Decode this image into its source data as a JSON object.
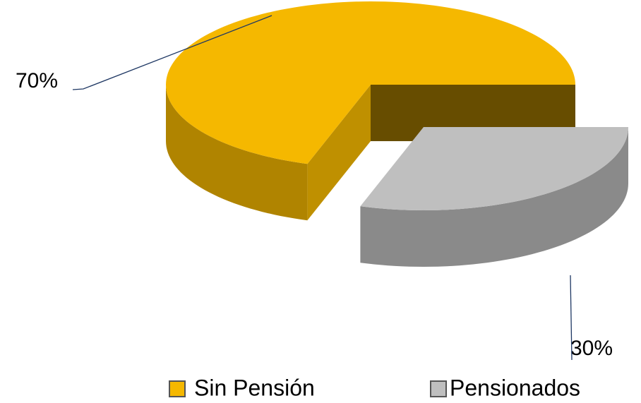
{
  "chart_data": {
    "type": "pie",
    "three_d": true,
    "categories": [
      "Sin Pensión",
      "Pensionados"
    ],
    "values": [
      70,
      30
    ],
    "value_labels": [
      "70%",
      "30%"
    ],
    "colors": [
      "#F5B800",
      "#BFBFBF"
    ],
    "legend": "bottom"
  }
}
